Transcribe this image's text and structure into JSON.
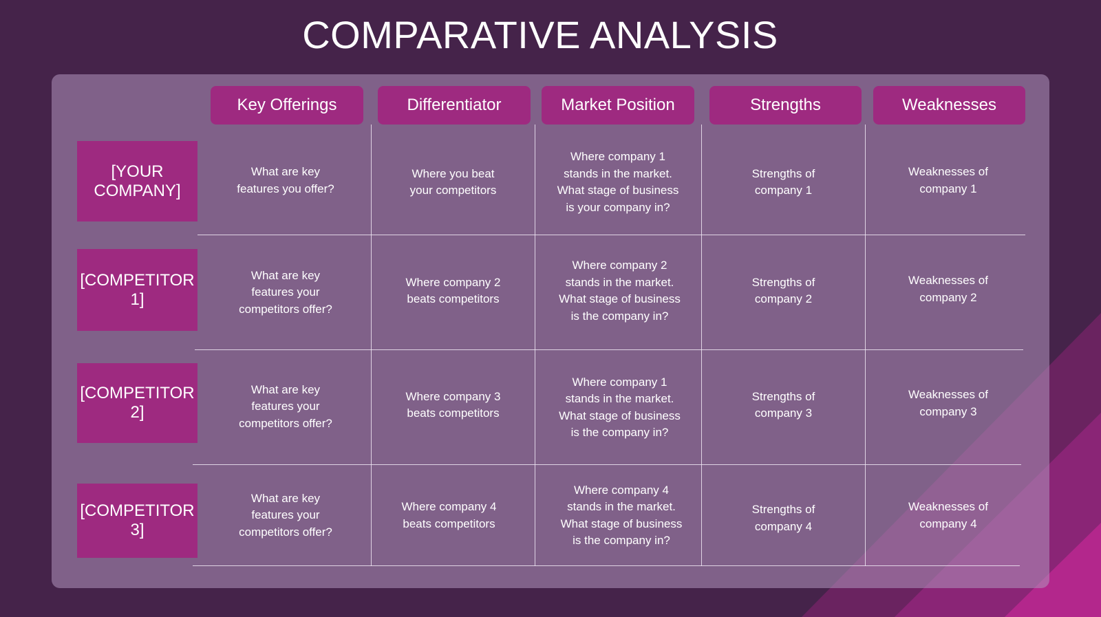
{
  "title": "COMPARATIVE ANALYSIS",
  "columns": [
    "Key Offerings",
    "Differentiator",
    "Market Position",
    "Strengths",
    "Weaknesses"
  ],
  "rows": [
    {
      "label": "[YOUR COMPANY]",
      "cells": [
        "What are key\nfeatures you offer?",
        "Where you beat\nyour competitors",
        "Where company 1\nstands in the market.\nWhat stage of business\nis your company in?",
        "Strengths of\ncompany 1",
        "Weaknesses of\ncompany 1"
      ]
    },
    {
      "label": "[COMPETITOR 1]",
      "cells": [
        "What are key\nfeatures your\ncompetitors offer?",
        "Where company 2\nbeats competitors",
        "Where company 2\nstands in the market.\nWhat stage of business\nis the company in?",
        "Strengths of\ncompany 2",
        "Weaknesses of\ncompany 2"
      ]
    },
    {
      "label": "[COMPETITOR 2]",
      "cells": [
        "What are key\nfeatures your\ncompetitors offer?",
        "Where company 3\nbeats competitors",
        "Where company 1\nstands in the market.\nWhat stage of business\nis the company in?",
        "Strengths of\ncompany 3",
        "Weaknesses of\ncompany 3"
      ]
    },
    {
      "label": "[COMPETITOR 3]",
      "cells": [
        "What are key\nfeatures your\ncompetitors offer?",
        "Where company 4\nbeats competitors",
        "Where company 4\nstands in the market.\nWhat stage of business\nis the company in?",
        "Strengths of\ncompany 4",
        "Weaknesses of\ncompany 4"
      ]
    }
  ],
  "colors": {
    "background": "#45234a",
    "accent": "#9e2a80",
    "text": "#ffffff"
  }
}
